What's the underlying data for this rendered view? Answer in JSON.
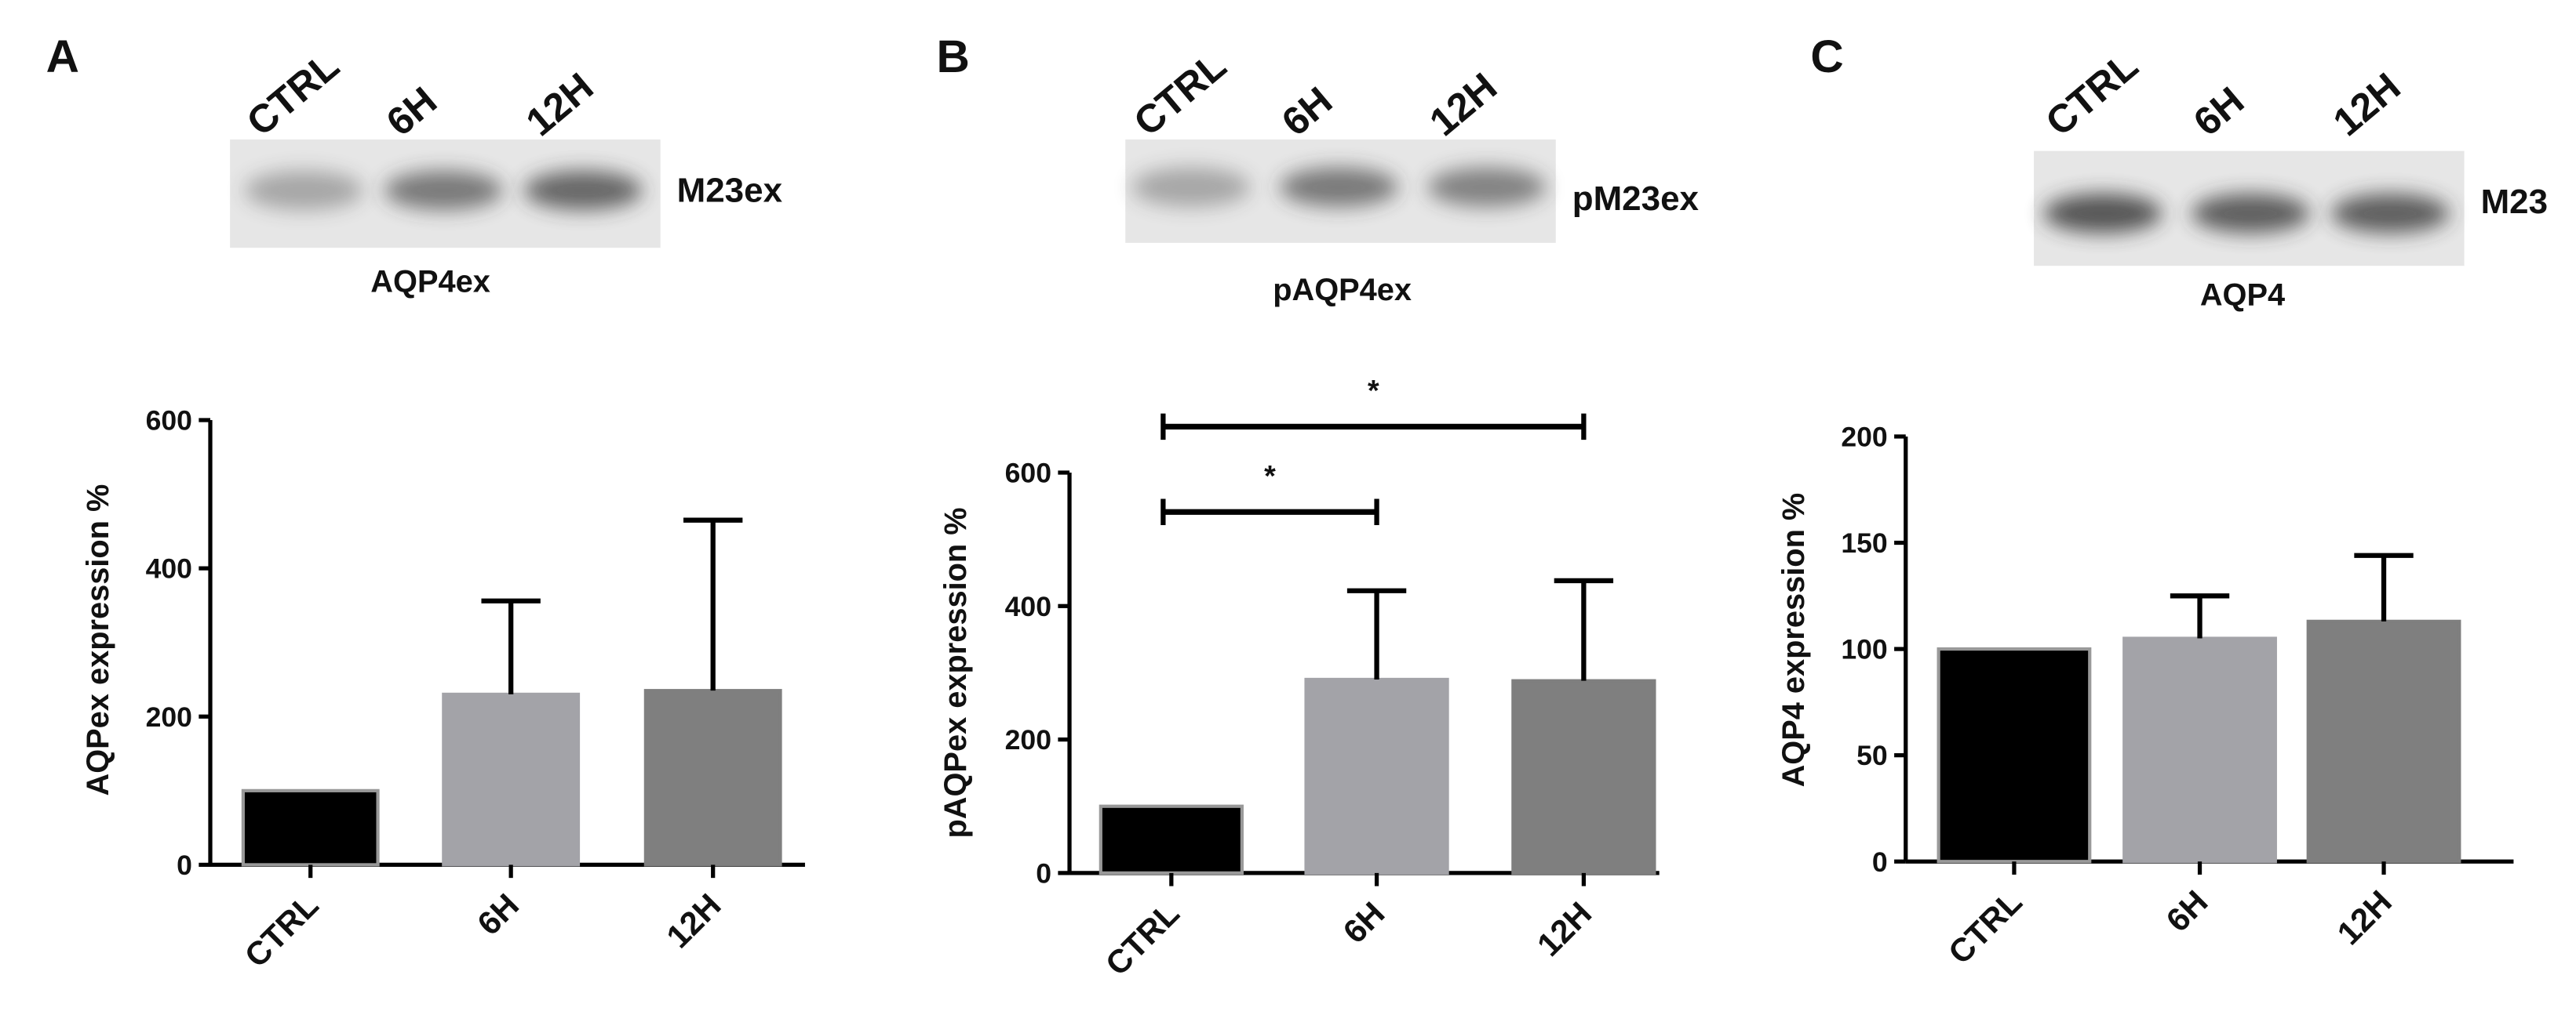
{
  "chart_data": [
    {
      "type": "bar",
      "panel": "A",
      "blot": {
        "lanes": [
          "CTRL",
          "6H",
          "12H"
        ],
        "marker": "M23ex",
        "caption": "AQP4ex"
      },
      "y_label": "AQPex  expression %",
      "categories": [
        "CTRL",
        "6H",
        "12H"
      ],
      "values": [
        100,
        230,
        235
      ],
      "errors": [
        null,
        126,
        230
      ],
      "colors": [
        "#000000",
        "#a3a3a8",
        "#7f7f7f"
      ],
      "ylim": [
        0,
        600
      ],
      "yticks": [
        0,
        200,
        400,
        600
      ],
      "grid": false
    },
    {
      "type": "bar",
      "panel": "B",
      "blot": {
        "lanes": [
          "CTRL",
          "6H",
          "12H"
        ],
        "marker": "pM23ex",
        "caption": "pAQP4ex"
      },
      "y_label": "pAQPex  expression %",
      "categories": [
        "CTRL",
        "6H",
        "12H"
      ],
      "values": [
        100,
        290,
        288
      ],
      "errors": [
        null,
        133,
        150
      ],
      "colors": [
        "#000000",
        "#a3a3a8",
        "#7f7f7f"
      ],
      "ylim": [
        0,
        600
      ],
      "yticks": [
        0,
        200,
        400,
        600
      ],
      "grid": false,
      "annotations": [
        {
          "from": 0,
          "to": 1,
          "label": "*"
        },
        {
          "from": 0,
          "to": 2,
          "label": "*"
        }
      ]
    },
    {
      "type": "bar",
      "panel": "C",
      "blot": {
        "lanes": [
          "CTRL",
          "6H",
          "12H"
        ],
        "marker": "M23",
        "caption": "AQP4"
      },
      "y_label": "AQP4 expression %",
      "categories": [
        "CTRL",
        "6H",
        "12H"
      ],
      "values": [
        100,
        105,
        113
      ],
      "errors": [
        null,
        20,
        31
      ],
      "colors": [
        "#000000",
        "#a3a3a8",
        "#7f7f7f"
      ],
      "ylim": [
        0,
        200
      ],
      "yticks": [
        0,
        50,
        100,
        150,
        200
      ],
      "grid": false
    }
  ]
}
